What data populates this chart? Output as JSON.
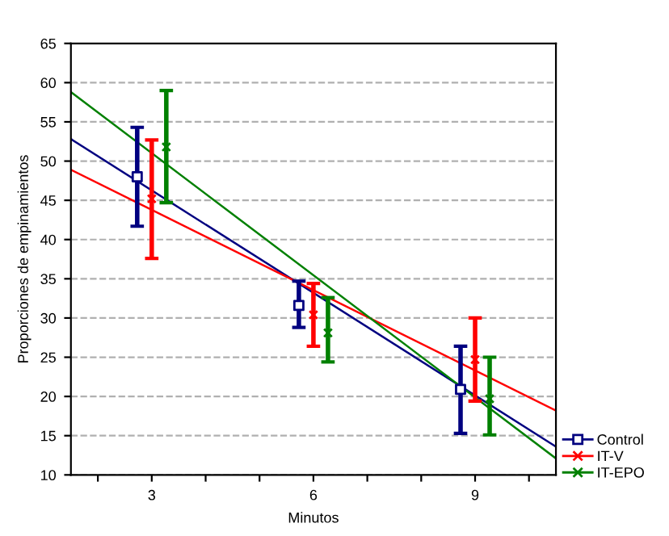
{
  "chart_data": {
    "type": "scatter",
    "xlabel": "Minutos",
    "ylabel": "Proporciones de empinamientos",
    "xlim": [
      1.5,
      10.5
    ],
    "xticks": [
      {
        "value": 2,
        "label": null
      },
      3,
      {
        "value": 4,
        "label": null
      },
      {
        "value": 5,
        "label": null
      },
      6,
      {
        "value": 7,
        "label": null
      },
      {
        "value": 8,
        "label": null
      },
      9,
      {
        "value": 10,
        "label": null
      }
    ],
    "ylim": [
      10,
      65
    ],
    "yticks": [
      10,
      15,
      20,
      25,
      30,
      35,
      40,
      45,
      50,
      55,
      60,
      65
    ],
    "grid": "y",
    "legend": "bottom right",
    "series": [
      {
        "name": "Control",
        "color": "#000080",
        "marker": "square",
        "x": [
          2.73,
          5.73,
          8.73
        ],
        "values": [
          48.0,
          31.6,
          20.9
        ],
        "errors": [
          [
            41.7,
            54.3
          ],
          [
            28.8,
            34.7
          ],
          [
            15.3,
            26.4
          ]
        ]
      },
      {
        "name": "IT-V",
        "color": "#ff0000",
        "marker": "cross",
        "x": [
          3,
          6,
          9
        ],
        "values": [
          45.2,
          30.4,
          24.7
        ],
        "errors": [
          [
            37.6,
            52.7
          ],
          [
            26.4,
            34.4
          ],
          [
            19.4,
            30.0
          ]
        ]
      },
      {
        "name": "IT-EPO",
        "color": "#008000",
        "marker": "cross",
        "x": [
          3.27,
          6.27,
          9.27
        ],
        "values": [
          51.8,
          28.1,
          19.7
        ],
        "errors": [
          [
            44.7,
            59.0
          ],
          [
            24.4,
            32.6
          ],
          [
            15.1,
            25.0
          ]
        ]
      },
      {
        "type": "line",
        "color": "#000080",
        "x": [
          1.5,
          10.5
        ],
        "values": [
          52.8,
          13.6
        ]
      },
      {
        "type": "line",
        "color": "#ff0000",
        "x": [
          1.5,
          10.5
        ],
        "values": [
          48.9,
          18.2
        ]
      },
      {
        "type": "line",
        "color": "#008000",
        "x": [
          1.5,
          10.5
        ],
        "values": [
          58.8,
          12.1
        ]
      }
    ]
  }
}
